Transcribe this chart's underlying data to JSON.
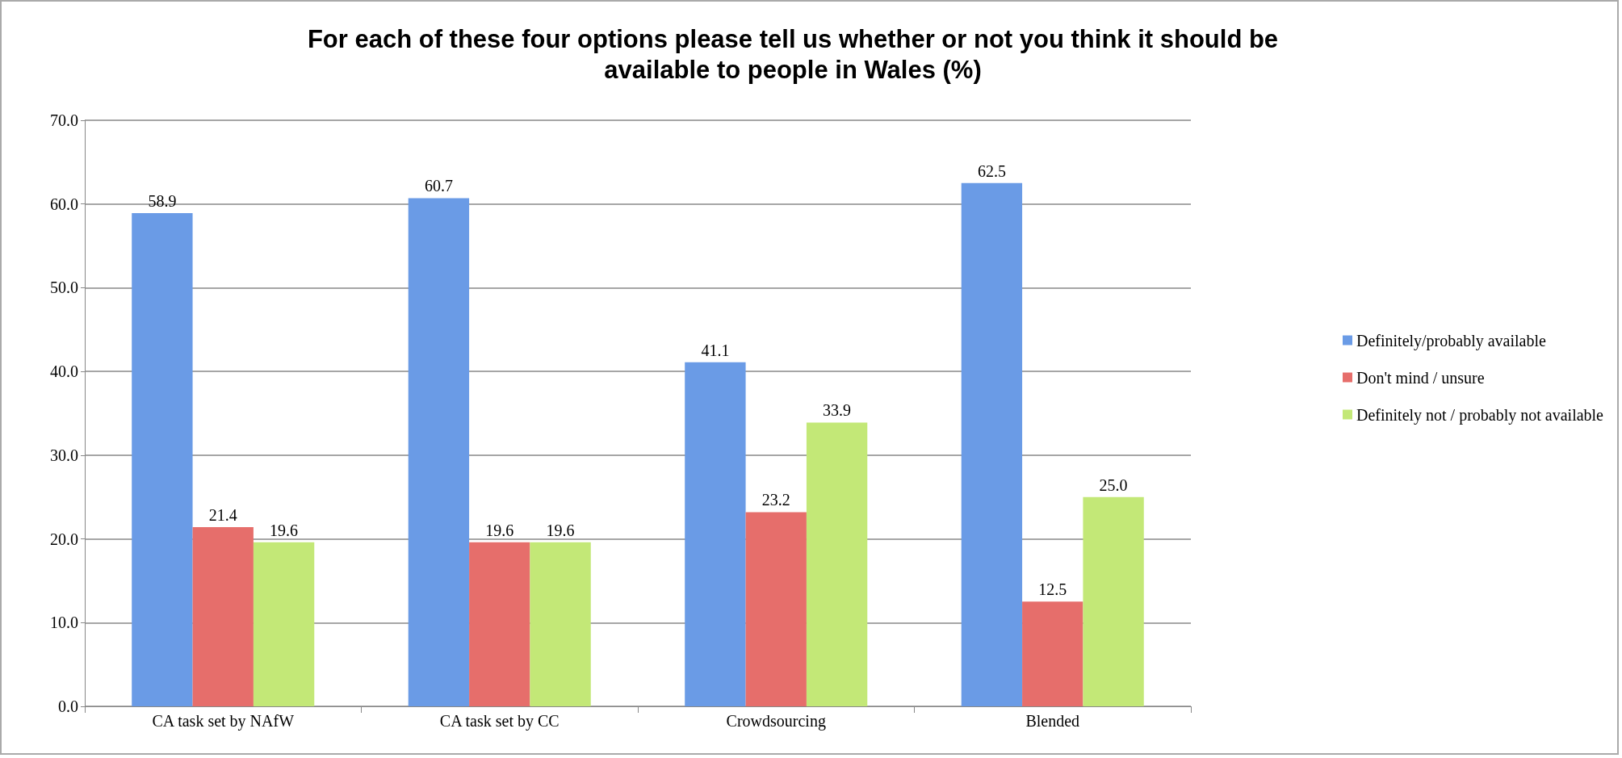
{
  "chart_data": {
    "type": "bar",
    "title": "For each of these four options please tell us whether or not you think it should be\navailable to people in Wales (%)",
    "categories": [
      "CA task set by NAfW",
      "CA task set by CC",
      "Crowdsourcing",
      "Blended"
    ],
    "series": [
      {
        "name": "Definitely/probably available",
        "color": "#6a9be6",
        "values": [
          58.9,
          60.7,
          41.1,
          62.5
        ],
        "value_labels": [
          "58.9",
          "60.7",
          "41.1",
          "62.5"
        ]
      },
      {
        "name": "Don't mind / unsure",
        "color": "#e66e6b",
        "values": [
          21.4,
          19.6,
          23.2,
          12.5
        ],
        "value_labels": [
          "21.4",
          "19.6",
          "23.2",
          "12.5"
        ]
      },
      {
        "name": "Definitely not / probably not available",
        "color": "#c3e877",
        "values": [
          19.6,
          19.6,
          33.9,
          25.0
        ],
        "value_labels": [
          "19.6",
          "19.6",
          "33.9",
          "25.0"
        ]
      }
    ],
    "ylim": [
      0,
      70
    ],
    "yticks": [
      {
        "value": 0,
        "label": "0.0"
      },
      {
        "value": 10,
        "label": "10.0"
      },
      {
        "value": 20,
        "label": "20.0"
      },
      {
        "value": 30,
        "label": "30.0"
      },
      {
        "value": 40,
        "label": "40.0"
      },
      {
        "value": 50,
        "label": "50.0"
      },
      {
        "value": 60,
        "label": "60.0"
      },
      {
        "value": 70,
        "label": "70.0"
      }
    ],
    "grid": "y",
    "legend": "right"
  }
}
